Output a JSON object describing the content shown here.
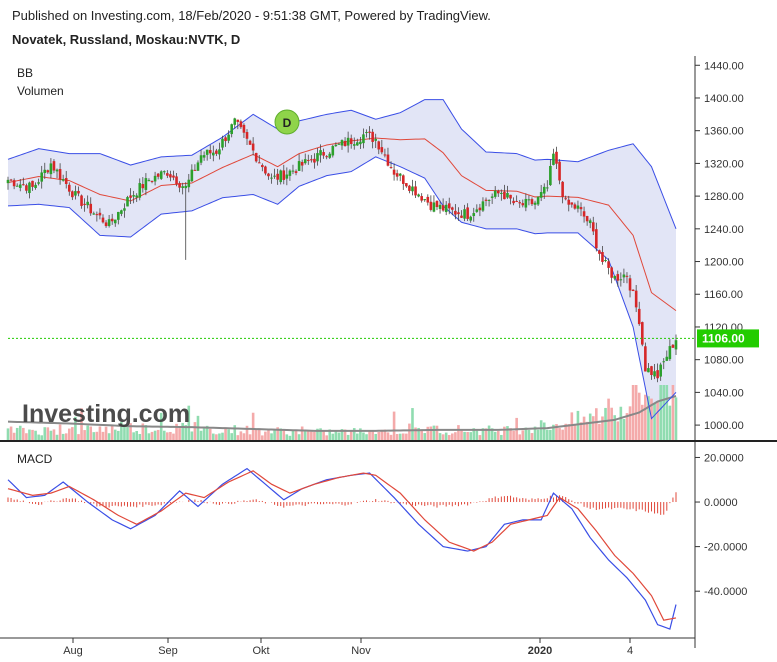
{
  "header": {
    "published": "Published on Investing.com, 18/Feb/2020 - 9:51:38 GMT, Powered by TradingView.",
    "symbol": "Novatek, Russland, Moskau:NVTK, D"
  },
  "watermark": "Investing.com",
  "colors": {
    "up": "#2ca02c",
    "down": "#d62728",
    "vol_up": "#90dcb0",
    "vol_down": "#f4aaaa",
    "bb_band": "#3a4ee6",
    "bb_fill": "#dde0f5",
    "bb_mid": "#e0483a",
    "macd_line": "#3a4ee6",
    "signal_line": "#e0483a",
    "hist": "#e0483a",
    "price_tag": "#22cc00"
  },
  "chart_data": [
    {
      "type": "candlestick",
      "indicators": [
        "BB",
        "Volumen"
      ],
      "y_ticks": [
        "1440.00",
        "1400.00",
        "1360.00",
        "1320.00",
        "1280.00",
        "1240.00",
        "1200.00",
        "1160.00",
        "1120.00",
        "1080.00",
        "1040.00",
        "1000.00"
      ],
      "ylim": [
        994,
        1444
      ],
      "x_ticks": [
        "Aug",
        "Sep",
        "Okt",
        "Nov",
        "2020",
        "4"
      ],
      "last_price": "1106.00",
      "event_marker": "D",
      "close_anchors": [
        [
          0,
          1300
        ],
        [
          8,
          1290
        ],
        [
          14,
          1320
        ],
        [
          22,
          1280
        ],
        [
          28,
          1260
        ],
        [
          33,
          1245
        ],
        [
          40,
          1280
        ],
        [
          46,
          1300
        ],
        [
          52,
          1310
        ],
        [
          58,
          1290
        ],
        [
          63,
          1330
        ],
        [
          68,
          1335
        ],
        [
          74,
          1370
        ],
        [
          80,
          1335
        ],
        [
          86,
          1300
        ],
        [
          92,
          1310
        ],
        [
          98,
          1322
        ],
        [
          104,
          1335
        ],
        [
          110,
          1345
        ],
        [
          116,
          1355
        ],
        [
          120,
          1350
        ],
        [
          126,
          1310
        ],
        [
          132,
          1290
        ],
        [
          138,
          1270
        ],
        [
          144,
          1262
        ],
        [
          150,
          1258
        ],
        [
          156,
          1275
        ],
        [
          161,
          1285
        ],
        [
          166,
          1268
        ],
        [
          172,
          1272
        ],
        [
          176,
          1290
        ],
        [
          178,
          1330
        ],
        [
          182,
          1270
        ],
        [
          186,
          1265
        ],
        [
          190,
          1245
        ],
        [
          194,
          1200
        ],
        [
          198,
          1180
        ],
        [
          202,
          1185
        ],
        [
          206,
          1130
        ],
        [
          208,
          1070
        ],
        [
          212,
          1060
        ],
        [
          215,
          1085
        ],
        [
          218,
          1106
        ]
      ],
      "bb_anchors": [
        [
          0,
          1325,
          1268
        ],
        [
          10,
          1338,
          1270
        ],
        [
          20,
          1332,
          1266
        ],
        [
          30,
          1332,
          1232
        ],
        [
          40,
          1318,
          1230
        ],
        [
          50,
          1328,
          1258
        ],
        [
          60,
          1330,
          1262
        ],
        [
          70,
          1352,
          1278
        ],
        [
          80,
          1380,
          1282
        ],
        [
          88,
          1362,
          1270
        ],
        [
          95,
          1372,
          1292
        ],
        [
          104,
          1380,
          1305
        ],
        [
          112,
          1385,
          1310
        ],
        [
          120,
          1374,
          1328
        ],
        [
          128,
          1382,
          1316
        ],
        [
          136,
          1398,
          1302
        ],
        [
          142,
          1398,
          1268
        ],
        [
          148,
          1362,
          1248
        ],
        [
          156,
          1334,
          1240
        ],
        [
          166,
          1332,
          1240
        ],
        [
          172,
          1324,
          1234
        ],
        [
          176,
          1325,
          1235
        ],
        [
          186,
          1322,
          1235
        ],
        [
          196,
          1336,
          1202
        ],
        [
          204,
          1344,
          1120
        ],
        [
          210,
          1316,
          1008
        ],
        [
          218,
          1240,
          1040
        ]
      ],
      "volume_anchors": [
        [
          0,
          10
        ],
        [
          20,
          10
        ],
        [
          40,
          13
        ],
        [
          60,
          12
        ],
        [
          80,
          10
        ],
        [
          100,
          8
        ],
        [
          120,
          9
        ],
        [
          140,
          11
        ],
        [
          160,
          10
        ],
        [
          176,
          15
        ],
        [
          186,
          20
        ],
        [
          198,
          30
        ],
        [
          206,
          45
        ],
        [
          212,
          52
        ],
        [
          218,
          58
        ]
      ],
      "volume_ma_anchors": [
        [
          0,
          20
        ],
        [
          20,
          18
        ],
        [
          40,
          15
        ],
        [
          60,
          14
        ],
        [
          80,
          12
        ],
        [
          100,
          10
        ],
        [
          120,
          10
        ],
        [
          140,
          11
        ],
        [
          160,
          11
        ],
        [
          176,
          13
        ],
        [
          186,
          17
        ],
        [
          198,
          22
        ],
        [
          206,
          30
        ],
        [
          212,
          42
        ],
        [
          218,
          48
        ]
      ],
      "volume_max": 60
    },
    {
      "type": "line",
      "title": "MACD",
      "y_ticks": [
        "20.0000",
        "0.0000",
        "-20.0000",
        "-40.0000"
      ],
      "ylim": [
        -61,
        22
      ],
      "x_ticks": [
        "Aug",
        "Sep",
        "Okt",
        "Nov",
        "2020",
        "4"
      ],
      "series": [
        {
          "name": "",
          "color_key": "macd_line",
          "anchors": [
            [
              0,
              10
            ],
            [
              6,
              2
            ],
            [
              12,
              3
            ],
            [
              18,
              9
            ],
            [
              26,
              0
            ],
            [
              34,
              -8
            ],
            [
              40,
              -12
            ],
            [
              48,
              -6
            ],
            [
              56,
              5
            ],
            [
              62,
              -2
            ],
            [
              70,
              8
            ],
            [
              78,
              15
            ],
            [
              84,
              8
            ],
            [
              90,
              1
            ],
            [
              96,
              6
            ],
            [
              104,
              10
            ],
            [
              112,
              12
            ],
            [
              118,
              13
            ],
            [
              126,
              2
            ],
            [
              134,
              -10
            ],
            [
              142,
              -20
            ],
            [
              150,
              -22
            ],
            [
              156,
              -20
            ],
            [
              162,
              -10
            ],
            [
              168,
              -8
            ],
            [
              174,
              -8
            ],
            [
              178,
              4
            ],
            [
              184,
              -3
            ],
            [
              190,
              -16
            ],
            [
              196,
              -26
            ],
            [
              202,
              -34
            ],
            [
              208,
              -44
            ],
            [
              212,
              -55
            ],
            [
              216,
              -57
            ],
            [
              218,
              -46
            ]
          ]
        },
        {
          "name": "",
          "color_key": "signal_line",
          "anchors": [
            [
              0,
              6
            ],
            [
              8,
              3
            ],
            [
              14,
              4
            ],
            [
              20,
              7
            ],
            [
              28,
              1
            ],
            [
              36,
              -6
            ],
            [
              42,
              -10
            ],
            [
              50,
              -4
            ],
            [
              58,
              4
            ],
            [
              64,
              2
            ],
            [
              72,
              9
            ],
            [
              80,
              14
            ],
            [
              86,
              8
            ],
            [
              92,
              4
            ],
            [
              100,
              8
            ],
            [
              108,
              11
            ],
            [
              116,
              13
            ],
            [
              120,
              12
            ],
            [
              128,
              4
            ],
            [
              136,
              -8
            ],
            [
              144,
              -18
            ],
            [
              152,
              -22
            ],
            [
              158,
              -18
            ],
            [
              164,
              -10
            ],
            [
              170,
              -8
            ],
            [
              176,
              -6
            ],
            [
              180,
              2
            ],
            [
              186,
              -3
            ],
            [
              192,
              -13
            ],
            [
              198,
              -24
            ],
            [
              204,
              -32
            ],
            [
              210,
              -42
            ],
            [
              214,
              -53
            ],
            [
              218,
              -52
            ]
          ]
        }
      ],
      "histogram_anchors": [
        [
          0,
          2
        ],
        [
          10,
          -1
        ],
        [
          20,
          2
        ],
        [
          30,
          -2
        ],
        [
          40,
          -2
        ],
        [
          50,
          -1
        ],
        [
          60,
          1
        ],
        [
          70,
          -1
        ],
        [
          80,
          1
        ],
        [
          90,
          -2
        ],
        [
          100,
          -1
        ],
        [
          110,
          -1
        ],
        [
          120,
          1
        ],
        [
          130,
          -1
        ],
        [
          140,
          -2
        ],
        [
          150,
          -1
        ],
        [
          156,
          1
        ],
        [
          162,
          3
        ],
        [
          170,
          1
        ],
        [
          180,
          3
        ],
        [
          190,
          -3
        ],
        [
          200,
          -3
        ],
        [
          208,
          -4
        ],
        [
          214,
          -6
        ],
        [
          218,
          4
        ]
      ]
    }
  ]
}
